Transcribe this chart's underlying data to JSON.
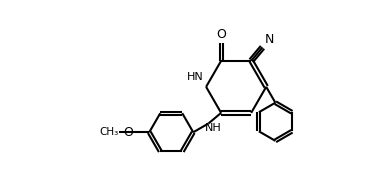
{
  "bg_color": "#ffffff",
  "line_color": "#000000",
  "bond_width": 1.5,
  "figsize": [
    3.88,
    1.92
  ],
  "dpi": 100,
  "xlim": [
    0,
    10
  ],
  "ylim": [
    0,
    5.2
  ]
}
